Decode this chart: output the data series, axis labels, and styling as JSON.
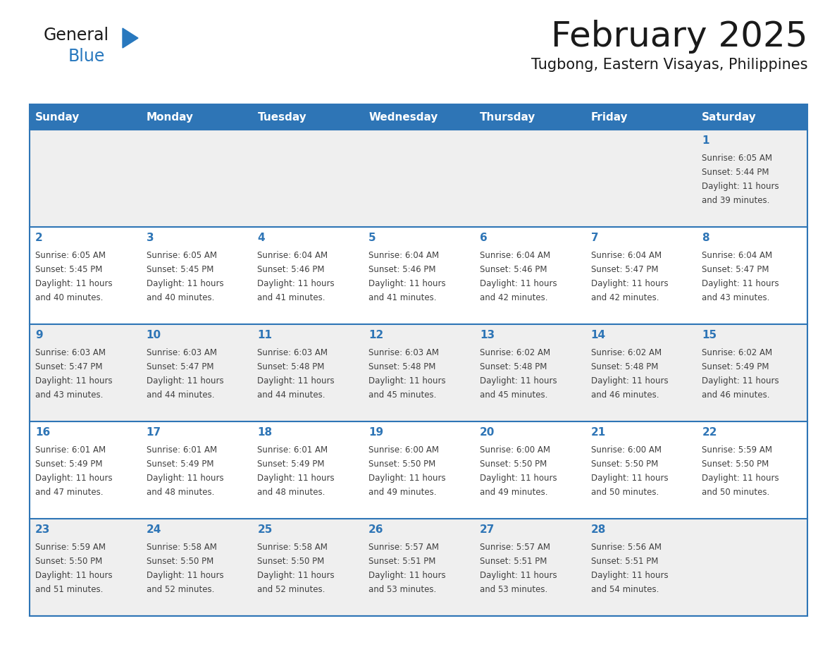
{
  "title": "February 2025",
  "subtitle": "Tugbong, Eastern Visayas, Philippines",
  "header_color": "#2E75B6",
  "header_text_color": "#FFFFFF",
  "day_names": [
    "Sunday",
    "Monday",
    "Tuesday",
    "Wednesday",
    "Thursday",
    "Friday",
    "Saturday"
  ],
  "background_color": "#FFFFFF",
  "cell_bg_row0": "#EFEFEF",
  "cell_bg_row1": "#FFFFFF",
  "grid_color": "#2E75B6",
  "text_color": "#404040",
  "num_color": "#2E75B6",
  "calendar": [
    [
      {
        "day": null,
        "sunrise": null,
        "sunset": null,
        "daylight_line1": null,
        "daylight_line2": null
      },
      {
        "day": null,
        "sunrise": null,
        "sunset": null,
        "daylight_line1": null,
        "daylight_line2": null
      },
      {
        "day": null,
        "sunrise": null,
        "sunset": null,
        "daylight_line1": null,
        "daylight_line2": null
      },
      {
        "day": null,
        "sunrise": null,
        "sunset": null,
        "daylight_line1": null,
        "daylight_line2": null
      },
      {
        "day": null,
        "sunrise": null,
        "sunset": null,
        "daylight_line1": null,
        "daylight_line2": null
      },
      {
        "day": null,
        "sunrise": null,
        "sunset": null,
        "daylight_line1": null,
        "daylight_line2": null
      },
      {
        "day": 1,
        "sunrise": "Sunrise: 6:05 AM",
        "sunset": "Sunset: 5:44 PM",
        "daylight_line1": "Daylight: 11 hours",
        "daylight_line2": "and 39 minutes."
      }
    ],
    [
      {
        "day": 2,
        "sunrise": "Sunrise: 6:05 AM",
        "sunset": "Sunset: 5:45 PM",
        "daylight_line1": "Daylight: 11 hours",
        "daylight_line2": "and 40 minutes."
      },
      {
        "day": 3,
        "sunrise": "Sunrise: 6:05 AM",
        "sunset": "Sunset: 5:45 PM",
        "daylight_line1": "Daylight: 11 hours",
        "daylight_line2": "and 40 minutes."
      },
      {
        "day": 4,
        "sunrise": "Sunrise: 6:04 AM",
        "sunset": "Sunset: 5:46 PM",
        "daylight_line1": "Daylight: 11 hours",
        "daylight_line2": "and 41 minutes."
      },
      {
        "day": 5,
        "sunrise": "Sunrise: 6:04 AM",
        "sunset": "Sunset: 5:46 PM",
        "daylight_line1": "Daylight: 11 hours",
        "daylight_line2": "and 41 minutes."
      },
      {
        "day": 6,
        "sunrise": "Sunrise: 6:04 AM",
        "sunset": "Sunset: 5:46 PM",
        "daylight_line1": "Daylight: 11 hours",
        "daylight_line2": "and 42 minutes."
      },
      {
        "day": 7,
        "sunrise": "Sunrise: 6:04 AM",
        "sunset": "Sunset: 5:47 PM",
        "daylight_line1": "Daylight: 11 hours",
        "daylight_line2": "and 42 minutes."
      },
      {
        "day": 8,
        "sunrise": "Sunrise: 6:04 AM",
        "sunset": "Sunset: 5:47 PM",
        "daylight_line1": "Daylight: 11 hours",
        "daylight_line2": "and 43 minutes."
      }
    ],
    [
      {
        "day": 9,
        "sunrise": "Sunrise: 6:03 AM",
        "sunset": "Sunset: 5:47 PM",
        "daylight_line1": "Daylight: 11 hours",
        "daylight_line2": "and 43 minutes."
      },
      {
        "day": 10,
        "sunrise": "Sunrise: 6:03 AM",
        "sunset": "Sunset: 5:47 PM",
        "daylight_line1": "Daylight: 11 hours",
        "daylight_line2": "and 44 minutes."
      },
      {
        "day": 11,
        "sunrise": "Sunrise: 6:03 AM",
        "sunset": "Sunset: 5:48 PM",
        "daylight_line1": "Daylight: 11 hours",
        "daylight_line2": "and 44 minutes."
      },
      {
        "day": 12,
        "sunrise": "Sunrise: 6:03 AM",
        "sunset": "Sunset: 5:48 PM",
        "daylight_line1": "Daylight: 11 hours",
        "daylight_line2": "and 45 minutes."
      },
      {
        "day": 13,
        "sunrise": "Sunrise: 6:02 AM",
        "sunset": "Sunset: 5:48 PM",
        "daylight_line1": "Daylight: 11 hours",
        "daylight_line2": "and 45 minutes."
      },
      {
        "day": 14,
        "sunrise": "Sunrise: 6:02 AM",
        "sunset": "Sunset: 5:48 PM",
        "daylight_line1": "Daylight: 11 hours",
        "daylight_line2": "and 46 minutes."
      },
      {
        "day": 15,
        "sunrise": "Sunrise: 6:02 AM",
        "sunset": "Sunset: 5:49 PM",
        "daylight_line1": "Daylight: 11 hours",
        "daylight_line2": "and 46 minutes."
      }
    ],
    [
      {
        "day": 16,
        "sunrise": "Sunrise: 6:01 AM",
        "sunset": "Sunset: 5:49 PM",
        "daylight_line1": "Daylight: 11 hours",
        "daylight_line2": "and 47 minutes."
      },
      {
        "day": 17,
        "sunrise": "Sunrise: 6:01 AM",
        "sunset": "Sunset: 5:49 PM",
        "daylight_line1": "Daylight: 11 hours",
        "daylight_line2": "and 48 minutes."
      },
      {
        "day": 18,
        "sunrise": "Sunrise: 6:01 AM",
        "sunset": "Sunset: 5:49 PM",
        "daylight_line1": "Daylight: 11 hours",
        "daylight_line2": "and 48 minutes."
      },
      {
        "day": 19,
        "sunrise": "Sunrise: 6:00 AM",
        "sunset": "Sunset: 5:50 PM",
        "daylight_line1": "Daylight: 11 hours",
        "daylight_line2": "and 49 minutes."
      },
      {
        "day": 20,
        "sunrise": "Sunrise: 6:00 AM",
        "sunset": "Sunset: 5:50 PM",
        "daylight_line1": "Daylight: 11 hours",
        "daylight_line2": "and 49 minutes."
      },
      {
        "day": 21,
        "sunrise": "Sunrise: 6:00 AM",
        "sunset": "Sunset: 5:50 PM",
        "daylight_line1": "Daylight: 11 hours",
        "daylight_line2": "and 50 minutes."
      },
      {
        "day": 22,
        "sunrise": "Sunrise: 5:59 AM",
        "sunset": "Sunset: 5:50 PM",
        "daylight_line1": "Daylight: 11 hours",
        "daylight_line2": "and 50 minutes."
      }
    ],
    [
      {
        "day": 23,
        "sunrise": "Sunrise: 5:59 AM",
        "sunset": "Sunset: 5:50 PM",
        "daylight_line1": "Daylight: 11 hours",
        "daylight_line2": "and 51 minutes."
      },
      {
        "day": 24,
        "sunrise": "Sunrise: 5:58 AM",
        "sunset": "Sunset: 5:50 PM",
        "daylight_line1": "Daylight: 11 hours",
        "daylight_line2": "and 52 minutes."
      },
      {
        "day": 25,
        "sunrise": "Sunrise: 5:58 AM",
        "sunset": "Sunset: 5:50 PM",
        "daylight_line1": "Daylight: 11 hours",
        "daylight_line2": "and 52 minutes."
      },
      {
        "day": 26,
        "sunrise": "Sunrise: 5:57 AM",
        "sunset": "Sunset: 5:51 PM",
        "daylight_line1": "Daylight: 11 hours",
        "daylight_line2": "and 53 minutes."
      },
      {
        "day": 27,
        "sunrise": "Sunrise: 5:57 AM",
        "sunset": "Sunset: 5:51 PM",
        "daylight_line1": "Daylight: 11 hours",
        "daylight_line2": "and 53 minutes."
      },
      {
        "day": 28,
        "sunrise": "Sunrise: 5:56 AM",
        "sunset": "Sunset: 5:51 PM",
        "daylight_line1": "Daylight: 11 hours",
        "daylight_line2": "and 54 minutes."
      },
      {
        "day": null,
        "sunrise": null,
        "sunset": null,
        "daylight_line1": null,
        "daylight_line2": null
      }
    ]
  ],
  "logo_text_general": "General",
  "logo_text_blue": "Blue",
  "logo_color_general": "#1A1A1A",
  "logo_color_blue": "#2878BE",
  "logo_triangle_color": "#2878BE",
  "title_fontsize": 36,
  "subtitle_fontsize": 15,
  "header_fontsize": 11,
  "day_num_fontsize": 11,
  "cell_text_fontsize": 8.5
}
